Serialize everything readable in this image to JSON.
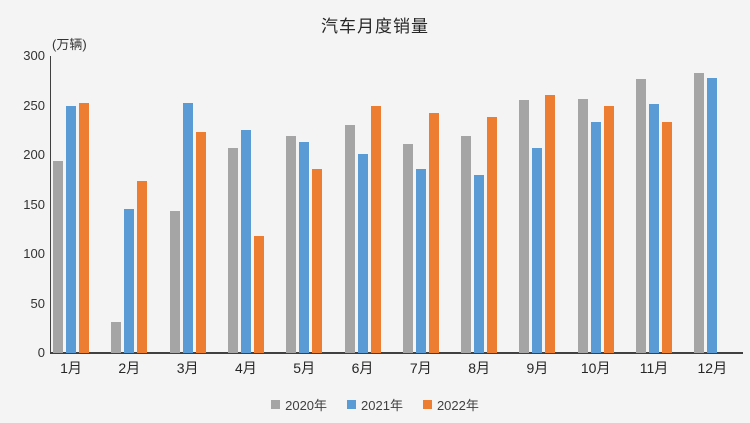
{
  "chart_data": {
    "type": "bar",
    "title": "汽车月度销量",
    "unit_label": "(万辆)",
    "categories": [
      "1月",
      "2月",
      "3月",
      "4月",
      "5月",
      "6月",
      "7月",
      "8月",
      "9月",
      "10月",
      "11月",
      "12月"
    ],
    "series": [
      {
        "name": "2020年",
        "color": "#a5a5a5",
        "values": [
          194,
          31,
          143,
          207,
          219,
          230,
          211,
          219,
          256,
          257,
          277,
          283
        ]
      },
      {
        "name": "2021年",
        "color": "#5b9bd5",
        "values": [
          250,
          145,
          253,
          225,
          213,
          201,
          186,
          180,
          207,
          233,
          252,
          278
        ]
      },
      {
        "name": "2022年",
        "color": "#ed7d31",
        "values": [
          253,
          174,
          223,
          118,
          186,
          250,
          242,
          238,
          261,
          250,
          233,
          null
        ]
      }
    ],
    "xlabel": "",
    "ylabel": "万辆",
    "ylim": [
      0,
      300
    ],
    "y_ticks": [
      0,
      50,
      100,
      150,
      200,
      250,
      300
    ],
    "grid": false,
    "legend_position": "bottom"
  },
  "colors": {
    "background": "#f4f4f4",
    "axis": "#404040",
    "text": "#333333"
  }
}
